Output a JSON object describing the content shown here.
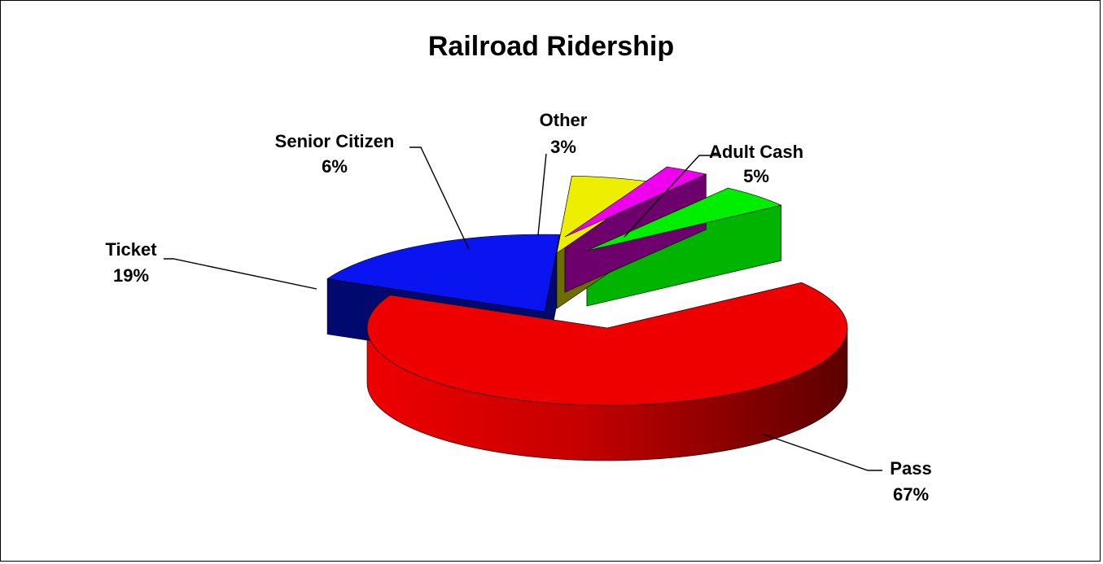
{
  "chart_data": {
    "type": "pie",
    "title": "Railroad Ridership",
    "slices": [
      {
        "label": "Adult Cash",
        "value": 5,
        "value_label": "5%",
        "color": "#00EE00",
        "side_color": "#00B400"
      },
      {
        "label": "Pass",
        "value": 67,
        "value_label": "67%",
        "color": "#EE0000",
        "side_color": "#8A0000"
      },
      {
        "label": "Ticket",
        "value": 19,
        "value_label": "19%",
        "color": "#0A14F0",
        "side_color": "#000A6E"
      },
      {
        "label": "Senior Citizen",
        "value": 6,
        "value_label": "6%",
        "color": "#EEEE00",
        "side_color": "#6E6E00"
      },
      {
        "label": "Other",
        "value": 3,
        "value_label": "3%",
        "color": "#EE00EE",
        "side_color": "#6E006E"
      }
    ],
    "exploded": [
      "Adult Cash",
      "Ticket",
      "Senior Citizen",
      "Other"
    ],
    "style": "3d-exploded",
    "legend": "none",
    "label_position": "outside-with-leader-lines"
  }
}
